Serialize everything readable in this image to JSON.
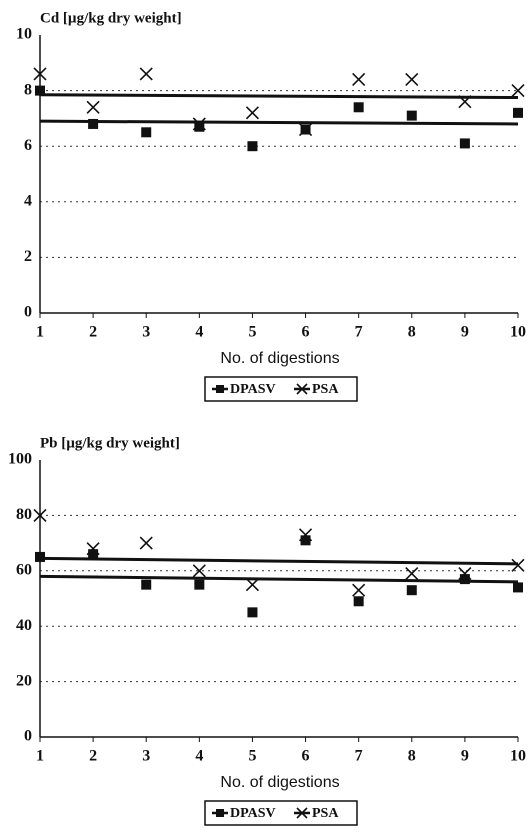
{
  "chart_data": [
    {
      "type": "scatter",
      "title": "Cd [µg/kg dry weight]",
      "x_label": "No. of digestions",
      "x": [
        1,
        2,
        3,
        4,
        5,
        6,
        7,
        8,
        9,
        10
      ],
      "xlim": [
        1,
        10
      ],
      "xticks": [
        1,
        2,
        3,
        4,
        5,
        6,
        7,
        8,
        9,
        10
      ],
      "ylim": [
        0,
        10
      ],
      "yticks": [
        0,
        2,
        4,
        6,
        8,
        10
      ],
      "grid": true,
      "series": [
        {
          "name": "DPASV",
          "marker": "square",
          "color": "#111111",
          "values": [
            8.0,
            6.8,
            6.5,
            6.7,
            6.0,
            6.6,
            7.4,
            7.1,
            6.1,
            7.2
          ],
          "trend": [
            6.9,
            6.8
          ]
        },
        {
          "name": "PSA",
          "marker": "x",
          "color": "#111111",
          "values": [
            8.6,
            7.4,
            8.6,
            6.8,
            7.2,
            6.6,
            8.4,
            8.4,
            7.6,
            8.0
          ],
          "trend": [
            7.85,
            7.75
          ]
        }
      ]
    },
    {
      "type": "scatter",
      "title": "Pb [µg/kg dry weight]",
      "x_label": "No. of digestions",
      "x": [
        1,
        2,
        3,
        4,
        5,
        6,
        7,
        8,
        9,
        10
      ],
      "xlim": [
        1,
        10
      ],
      "xticks": [
        1,
        2,
        3,
        4,
        5,
        6,
        7,
        8,
        9,
        10
      ],
      "ylim": [
        0,
        100
      ],
      "yticks": [
        0,
        20,
        40,
        60,
        80,
        100
      ],
      "grid": true,
      "series": [
        {
          "name": "DPASV",
          "marker": "square",
          "color": "#111111",
          "values": [
            65,
            66,
            55,
            55,
            45,
            71,
            49,
            53,
            57,
            54
          ],
          "trend": [
            58,
            56
          ]
        },
        {
          "name": "PSA",
          "marker": "x",
          "color": "#111111",
          "values": [
            80,
            68,
            70,
            60,
            55,
            73,
            53,
            59,
            59,
            62
          ],
          "trend": [
            64.5,
            62.5
          ]
        }
      ]
    }
  ]
}
